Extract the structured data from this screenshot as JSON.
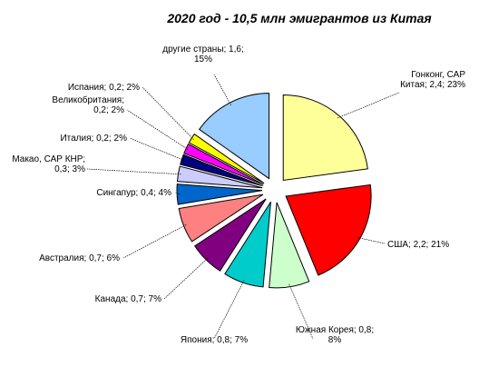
{
  "chart_data": {
    "type": "pie",
    "title": "2020 год - 10,5 млн эмигрантов из Китая",
    "exploded": true,
    "slices": [
      {
        "name": "Гонконг, САР Китая",
        "value": 2.4,
        "percent": 23,
        "color": "#FFFF99",
        "label_lines": [
          "Гонконг, САР",
          "Китая; 2,4; 23%"
        ]
      },
      {
        "name": "США",
        "value": 2.2,
        "percent": 21,
        "color": "#FF0000",
        "label_lines": [
          "США; 2,2; 21%"
        ]
      },
      {
        "name": "Южная Корея",
        "value": 0.8,
        "percent": 8,
        "color": "#CCFFCC",
        "label_lines": [
          "Южная Корея; 0,8;",
          "8%"
        ]
      },
      {
        "name": "Япония",
        "value": 0.8,
        "percent": 7,
        "color": "#00CCCC",
        "label_lines": [
          "Япония; 0,8; 7%"
        ]
      },
      {
        "name": "Канада",
        "value": 0.7,
        "percent": 7,
        "color": "#800080",
        "label_lines": [
          "Канада; 0,7; 7%"
        ]
      },
      {
        "name": "Австралия",
        "value": 0.7,
        "percent": 6,
        "color": "#FF8080",
        "label_lines": [
          "Австралия; 0,7; 6%"
        ]
      },
      {
        "name": "Сингапур",
        "value": 0.4,
        "percent": 4,
        "color": "#0066CC",
        "label_lines": [
          "Сингапур; 0,4; 4%"
        ]
      },
      {
        "name": "Макао, САР КНР",
        "value": 0.3,
        "percent": 3,
        "color": "#CCCCFF",
        "label_lines": [
          "Макао, САР КНР;",
          "0,3; 3%"
        ]
      },
      {
        "name": "Италия",
        "value": 0.2,
        "percent": 2,
        "color": "#000080",
        "label_lines": [
          "Италия; 0,2; 2%"
        ]
      },
      {
        "name": "Великобритания",
        "value": 0.2,
        "percent": 2,
        "color": "#FF00FF",
        "label_lines": [
          "Великобритания;",
          "0,2; 2%"
        ]
      },
      {
        "name": "Испания",
        "value": 0.2,
        "percent": 2,
        "color": "#FFFF00",
        "label_lines": [
          "Испания; 0,2; 2%"
        ]
      },
      {
        "name": "другие страны",
        "value": 1.6,
        "percent": 15,
        "color": "#99CCFF",
        "label_lines": [
          "другие страны; 1,6;",
          "15%"
        ]
      }
    ]
  }
}
